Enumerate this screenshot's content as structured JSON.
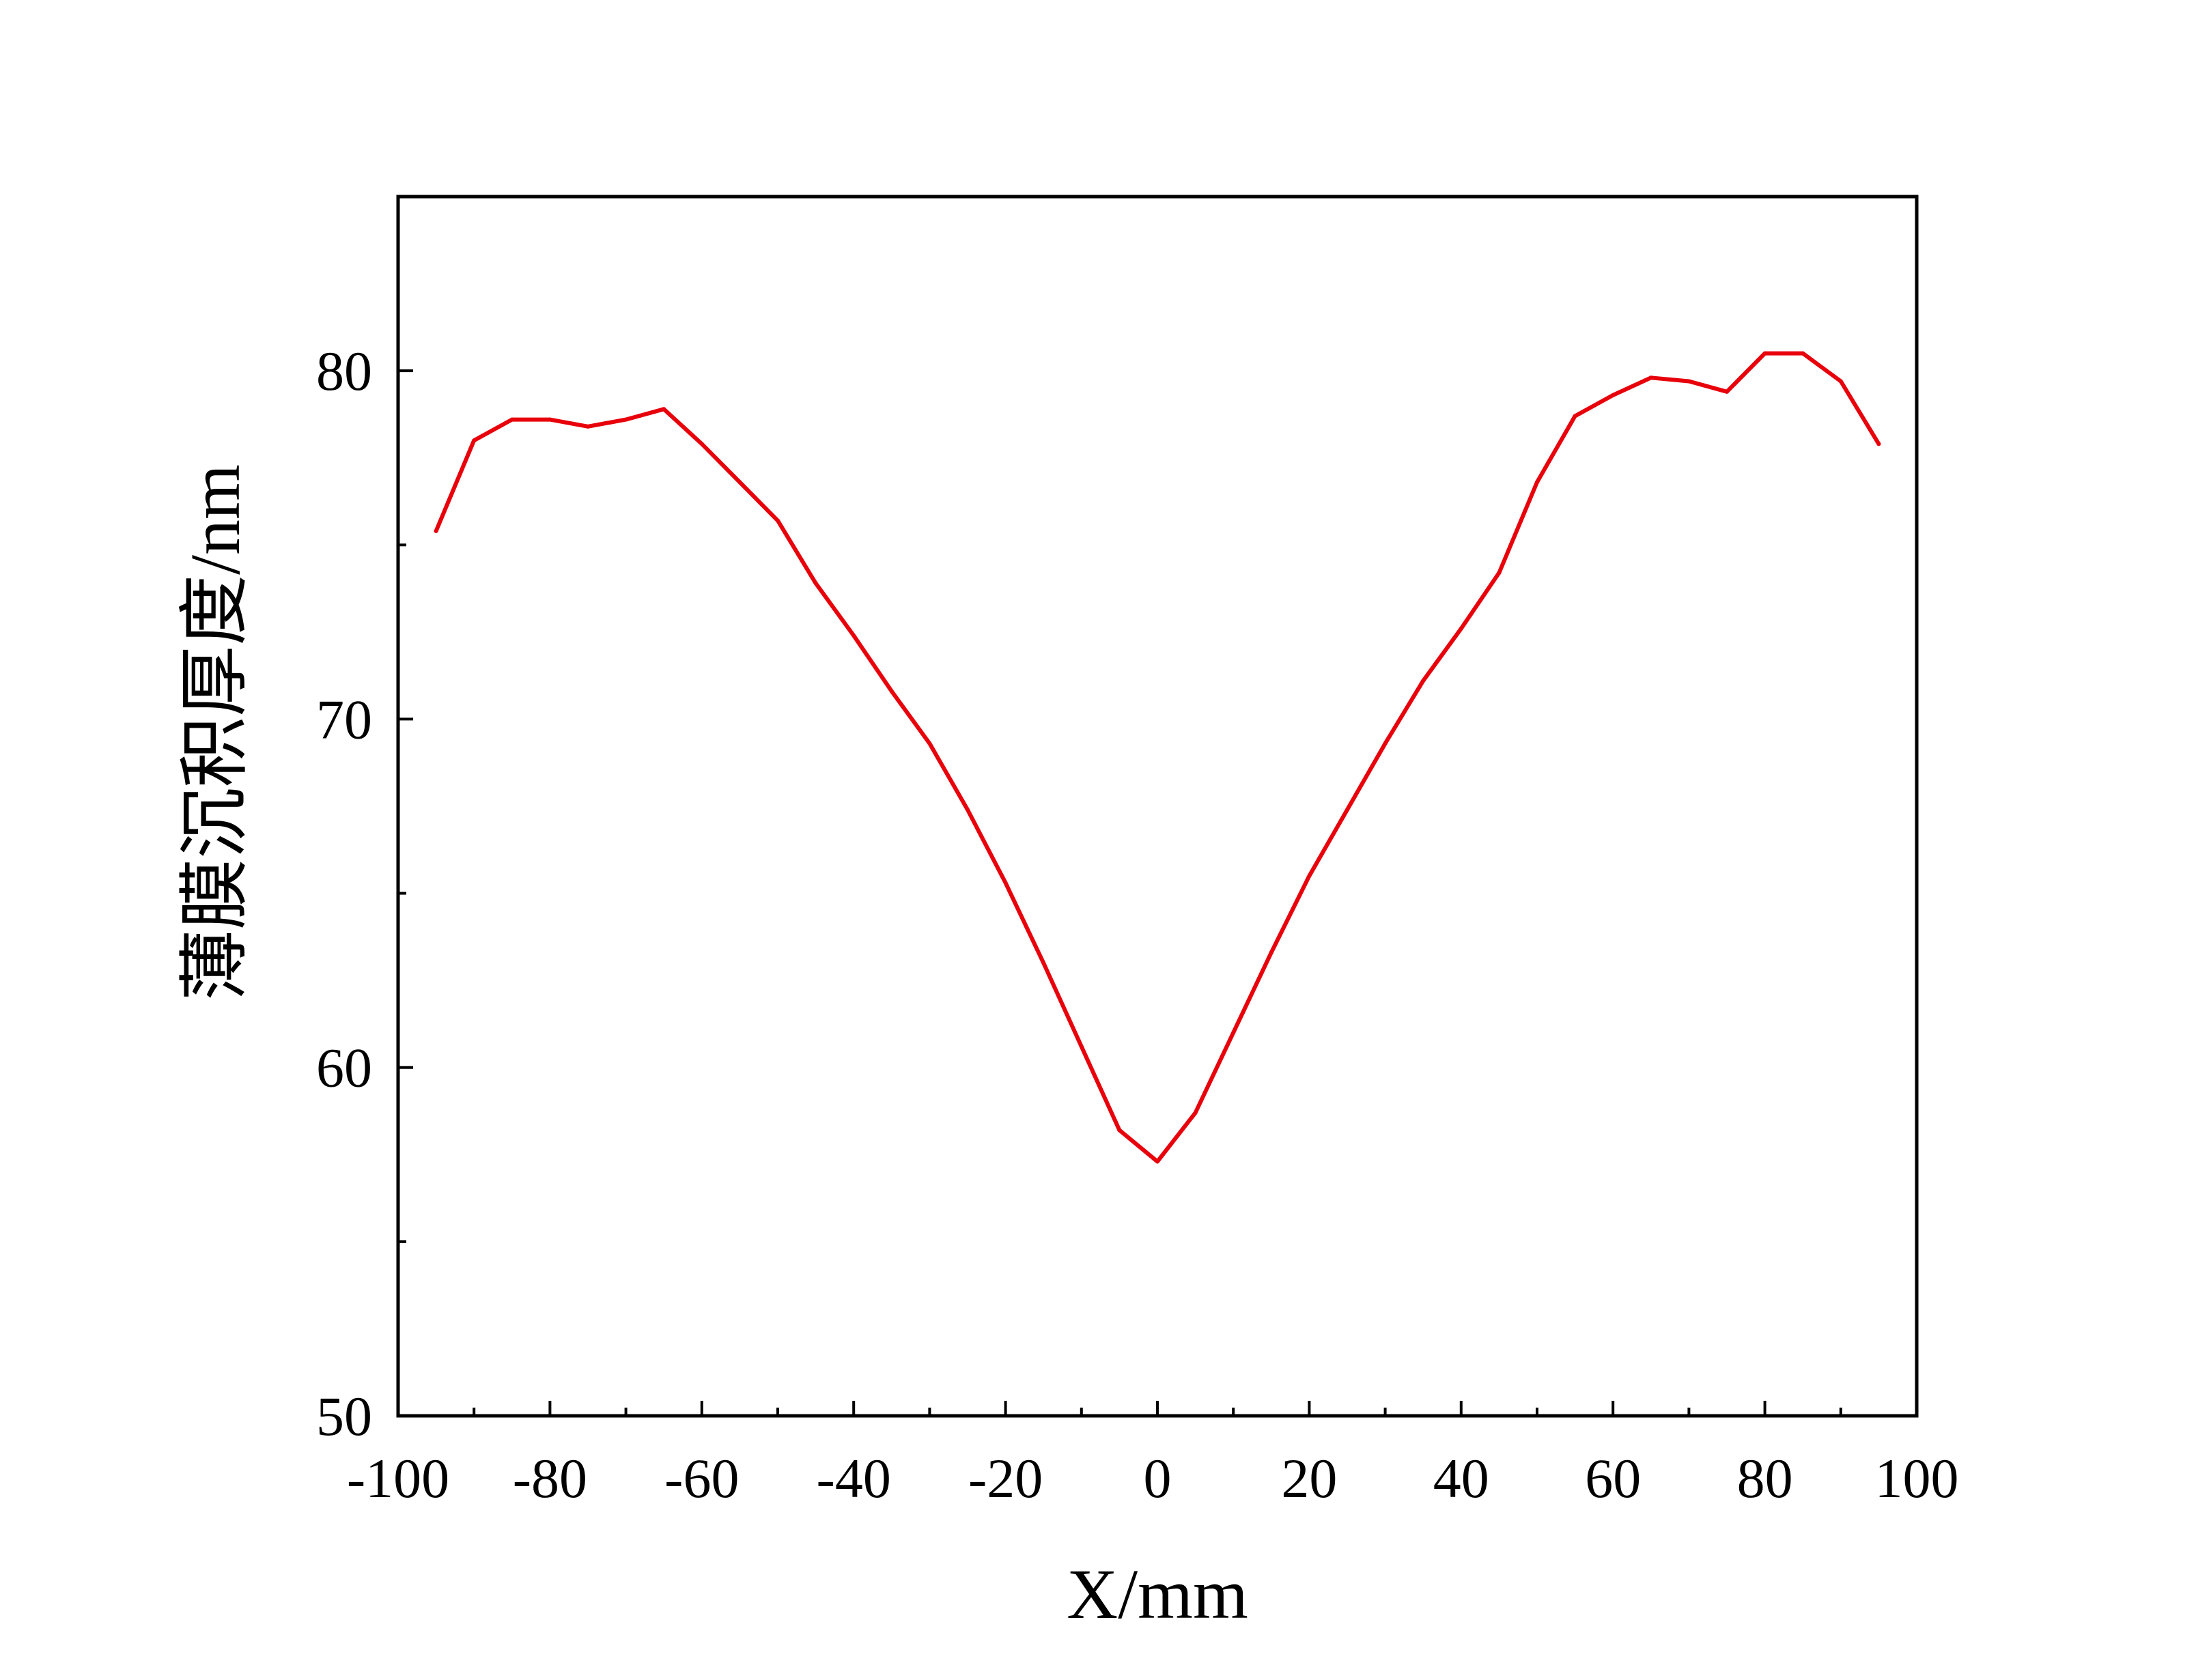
{
  "chart_data": {
    "type": "line",
    "title": "",
    "xlabel": "X/mm",
    "ylabel": "薄膜沉积厚度/nm",
    "xlim": [
      -100,
      100
    ],
    "ylim": [
      50,
      85
    ],
    "x_ticks": [
      -100,
      -80,
      -60,
      -40,
      -20,
      0,
      20,
      40,
      60,
      80,
      100
    ],
    "x_tick_labels": [
      "-100",
      "-80",
      "-60",
      "-40",
      "-20",
      "0",
      "20",
      "40",
      "60",
      "80",
      "100"
    ],
    "y_ticks": [
      50,
      60,
      70,
      80
    ],
    "y_tick_labels": [
      "50",
      "60",
      "70",
      "80"
    ],
    "y_minor_ticks": [
      55,
      65,
      75
    ],
    "grid": false,
    "legend": "none",
    "series": [
      {
        "color": "#e8000b",
        "x": [
          -95,
          -90,
          -85,
          -80,
          -75,
          -70,
          -65,
          -60,
          -55,
          -50,
          -45,
          -40,
          -35,
          -30,
          -25,
          -20,
          -15,
          -10,
          -5,
          0,
          5,
          10,
          15,
          20,
          25,
          30,
          35,
          40,
          45,
          50,
          55,
          60,
          65,
          70,
          75,
          80,
          85,
          90,
          95
        ],
        "y": [
          75.4,
          78.0,
          78.6,
          78.6,
          78.4,
          78.6,
          78.9,
          77.9,
          76.8,
          75.7,
          73.9,
          72.4,
          70.8,
          69.3,
          67.4,
          65.3,
          63.0,
          60.6,
          58.2,
          57.3,
          58.7,
          61.0,
          63.3,
          65.5,
          67.4,
          69.3,
          71.1,
          72.6,
          74.2,
          76.8,
          78.7,
          79.3,
          79.8,
          79.7,
          79.4,
          80.5,
          80.5,
          79.7,
          77.9
        ]
      }
    ]
  }
}
